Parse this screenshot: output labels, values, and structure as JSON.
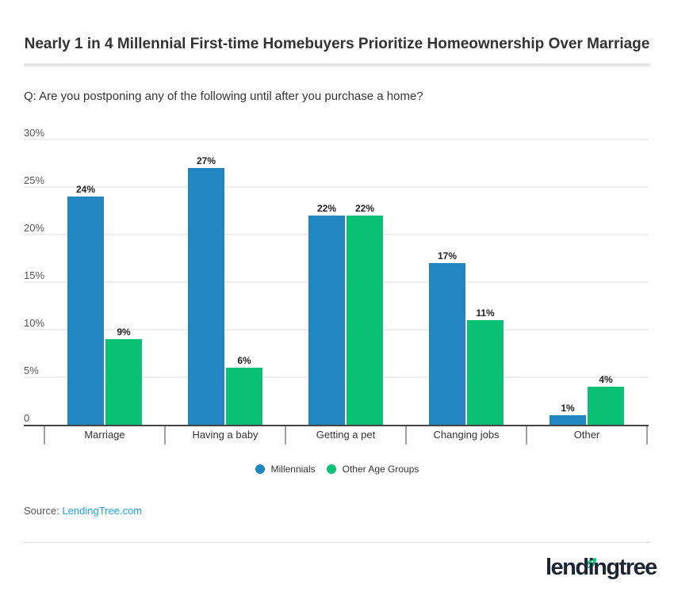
{
  "title": "Nearly 1 in 4 Millennial First-time Homebuyers Prioritize Homeownership Over Marriage",
  "question": "Q: Are you postponing any of the following until after you purchase a home?",
  "source_label": "Source:",
  "source_link": "LendingTree.com",
  "logo_text": "lendingtree",
  "chart_data": {
    "type": "bar",
    "categories": [
      "Marriage",
      "Having a baby",
      "Getting a pet",
      "Changing jobs",
      "Other"
    ],
    "series": [
      {
        "name": "Millennials",
        "values": [
          24,
          27,
          22,
          17,
          1
        ],
        "color": "#2186c1"
      },
      {
        "name": "Other Age Groups",
        "values": [
          9,
          6,
          22,
          11,
          4
        ],
        "color": "#0bc175"
      }
    ],
    "ylim": [
      0,
      30
    ],
    "yticks": [
      0,
      5,
      10,
      15,
      20,
      25,
      30
    ],
    "ytick_labels": [
      "0",
      "5%",
      "10%",
      "15%",
      "20%",
      "25%",
      "30%"
    ],
    "value_suffix": "%",
    "grid": true,
    "legend": "bottom"
  }
}
